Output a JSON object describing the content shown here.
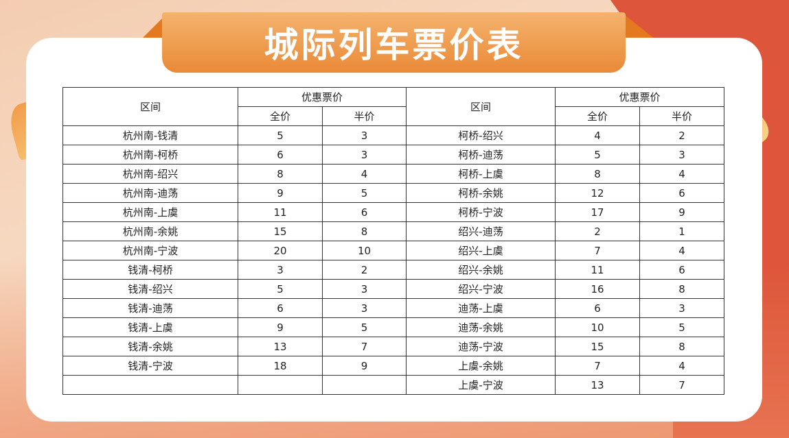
{
  "title": "城际列车票价表",
  "header": {
    "interval": "区间",
    "discount": "优惠票价",
    "full": "全价",
    "half": "半价"
  },
  "left_rows": [
    [
      "杭州南-钱清",
      "5",
      "3"
    ],
    [
      "杭州南-柯桥",
      "6",
      "3"
    ],
    [
      "杭州南-绍兴",
      "8",
      "4"
    ],
    [
      "杭州南-迪荡",
      "9",
      "5"
    ],
    [
      "杭州南-上虞",
      "11",
      "6"
    ],
    [
      "杭州南-余姚",
      "15",
      "8"
    ],
    [
      "杭州南-宁波",
      "20",
      "10"
    ],
    [
      "钱清-柯桥",
      "3",
      "2"
    ],
    [
      "钱清-绍兴",
      "5",
      "3"
    ],
    [
      "钱清-迪荡",
      "6",
      "3"
    ],
    [
      "钱清-上虞",
      "9",
      "5"
    ],
    [
      "钱清-余姚",
      "13",
      "7"
    ],
    [
      "钱清-宁波",
      "18",
      "9"
    ],
    [
      "",
      "",
      ""
    ]
  ],
  "right_rows": [
    [
      "柯桥-绍兴",
      "4",
      "2"
    ],
    [
      "柯桥-迪荡",
      "5",
      "3"
    ],
    [
      "柯桥-上虞",
      "8",
      "4"
    ],
    [
      "柯桥-余姚",
      "12",
      "6"
    ],
    [
      "柯桥-宁波",
      "17",
      "9"
    ],
    [
      "绍兴-迪荡",
      "2",
      "1"
    ],
    [
      "绍兴-上虞",
      "7",
      "4"
    ],
    [
      "绍兴-余姚",
      "11",
      "6"
    ],
    [
      "绍兴-宁波",
      "16",
      "8"
    ],
    [
      "迪荡-上虞",
      "6",
      "3"
    ],
    [
      "迪荡-余姚",
      "10",
      "5"
    ],
    [
      "迪荡-宁波",
      "15",
      "8"
    ],
    [
      "上虞-余姚",
      "7",
      "4"
    ],
    [
      "上虞-宁波",
      "13",
      "7"
    ]
  ]
}
